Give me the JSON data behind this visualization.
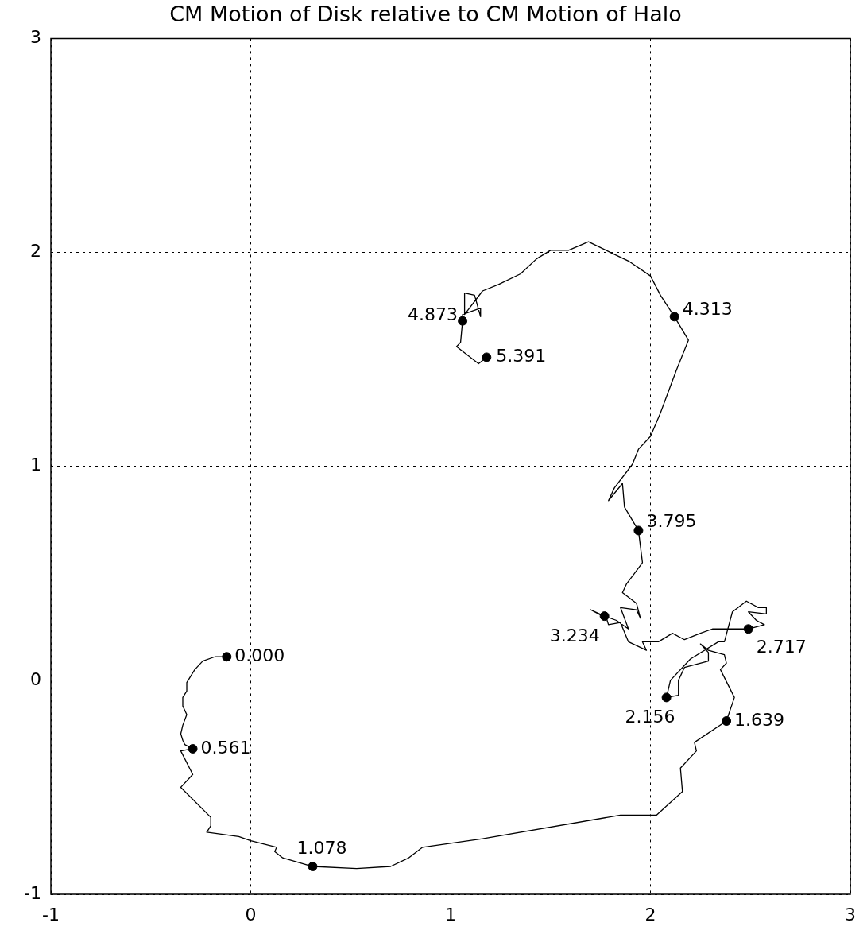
{
  "chart_data": {
    "type": "line",
    "title": "CM Motion of Disk relative to CM Motion of Halo",
    "xlim": [
      -1,
      3
    ],
    "xticks": [
      -1,
      0,
      1,
      2,
      3
    ],
    "ylim": [
      -1,
      3
    ],
    "yticks": [
      -1,
      0,
      1,
      2,
      3
    ],
    "grid": true,
    "series": [
      {
        "color": "#000000",
        "marker": "none",
        "x": [
          -0.12,
          -0.18,
          -0.24,
          -0.28,
          -0.32,
          -0.32,
          -0.34,
          -0.34,
          -0.32,
          -0.34,
          -0.35,
          -0.34,
          -0.33,
          -0.29,
          -0.35,
          -0.29,
          -0.35,
          -0.2,
          -0.2,
          -0.22,
          -0.06,
          0.0,
          0.13,
          0.12,
          0.16,
          0.31,
          0.53,
          0.7,
          0.79,
          0.86,
          1.16,
          1.85,
          2.03,
          2.16,
          2.15,
          2.23,
          2.22,
          2.38,
          2.42,
          2.35,
          2.38,
          2.37,
          2.29,
          2.25,
          2.29,
          2.29,
          2.17,
          2.14,
          2.14,
          2.08,
          2.1,
          2.2,
          2.34,
          2.37,
          2.41,
          2.48,
          2.54,
          2.58,
          2.58,
          2.49,
          2.53,
          2.57,
          2.49,
          2.31,
          2.25,
          2.17,
          2.11,
          2.04,
          1.96,
          1.98,
          1.89,
          1.85,
          1.79,
          1.78,
          1.7,
          1.77,
          1.83,
          1.89,
          1.85,
          1.93,
          1.95,
          1.93,
          1.86,
          1.88,
          1.92,
          1.96,
          1.94,
          1.87,
          1.86,
          1.79,
          1.82,
          1.91,
          1.94,
          2.0,
          2.05,
          2.09,
          2.13,
          2.19,
          2.12,
          2.05,
          2.0,
          1.89,
          1.8,
          1.69,
          1.59,
          1.5,
          1.43,
          1.35,
          1.24,
          1.16,
          1.07,
          1.07,
          1.12,
          1.15,
          1.15,
          1.06,
          1.06,
          1.05,
          1.03,
          1.14,
          1.18
        ],
        "values": [
          0.11,
          0.11,
          0.09,
          0.05,
          -0.01,
          -0.05,
          -0.08,
          -0.12,
          -0.16,
          -0.21,
          -0.25,
          -0.28,
          -0.3,
          -0.32,
          -0.33,
          -0.44,
          -0.5,
          -0.64,
          -0.68,
          -0.71,
          -0.73,
          -0.75,
          -0.78,
          -0.8,
          -0.83,
          -0.87,
          -0.88,
          -0.87,
          -0.83,
          -0.78,
          -0.74,
          -0.63,
          -0.63,
          -0.52,
          -0.41,
          -0.33,
          -0.29,
          -0.19,
          -0.08,
          0.05,
          0.08,
          0.12,
          0.14,
          0.17,
          0.13,
          0.09,
          0.06,
          0.0,
          -0.07,
          -0.08,
          0.0,
          0.1,
          0.18,
          0.18,
          0.32,
          0.37,
          0.34,
          0.34,
          0.31,
          0.32,
          0.28,
          0.26,
          0.24,
          0.24,
          0.22,
          0.19,
          0.22,
          0.18,
          0.18,
          0.14,
          0.18,
          0.27,
          0.26,
          0.29,
          0.33,
          0.3,
          0.28,
          0.24,
          0.34,
          0.33,
          0.29,
          0.36,
          0.41,
          0.45,
          0.5,
          0.55,
          0.7,
          0.81,
          0.92,
          0.84,
          0.9,
          1.01,
          1.08,
          1.14,
          1.25,
          1.35,
          1.45,
          1.59,
          1.7,
          1.8,
          1.89,
          1.96,
          2.0,
          2.05,
          2.01,
          2.01,
          1.97,
          1.9,
          1.85,
          1.82,
          1.71,
          1.81,
          1.8,
          1.7,
          1.74,
          1.71,
          1.68,
          1.58,
          1.56,
          1.48,
          1.51
        ]
      },
      {
        "type": "scatter",
        "color": "#000000",
        "marker": "circle",
        "x": [
          -0.12,
          -0.29,
          0.31,
          2.38,
          2.08,
          2.49,
          1.77,
          1.94,
          2.12,
          1.06,
          1.18
        ],
        "values": [
          0.11,
          -0.32,
          -0.87,
          -0.19,
          -0.08,
          0.24,
          0.3,
          0.7,
          1.7,
          1.68,
          1.51
        ]
      }
    ],
    "annotations": [
      {
        "text": "0.000",
        "x": -0.12,
        "y": 0.11
      },
      {
        "text": "0.561",
        "x": -0.29,
        "y": -0.32
      },
      {
        "text": "1.078",
        "x": 0.31,
        "y": -0.87
      },
      {
        "text": "1.639",
        "x": 2.38,
        "y": -0.19
      },
      {
        "text": "2.156",
        "x": 2.08,
        "y": -0.08
      },
      {
        "text": "2.717",
        "x": 2.49,
        "y": 0.24
      },
      {
        "text": "3.234",
        "x": 1.77,
        "y": 0.3
      },
      {
        "text": "3.795",
        "x": 1.94,
        "y": 0.7
      },
      {
        "text": "4.313",
        "x": 2.12,
        "y": 1.7
      },
      {
        "text": "4.873",
        "x": 1.06,
        "y": 1.68
      },
      {
        "text": "5.391",
        "x": 1.18,
        "y": 1.51
      }
    ]
  }
}
